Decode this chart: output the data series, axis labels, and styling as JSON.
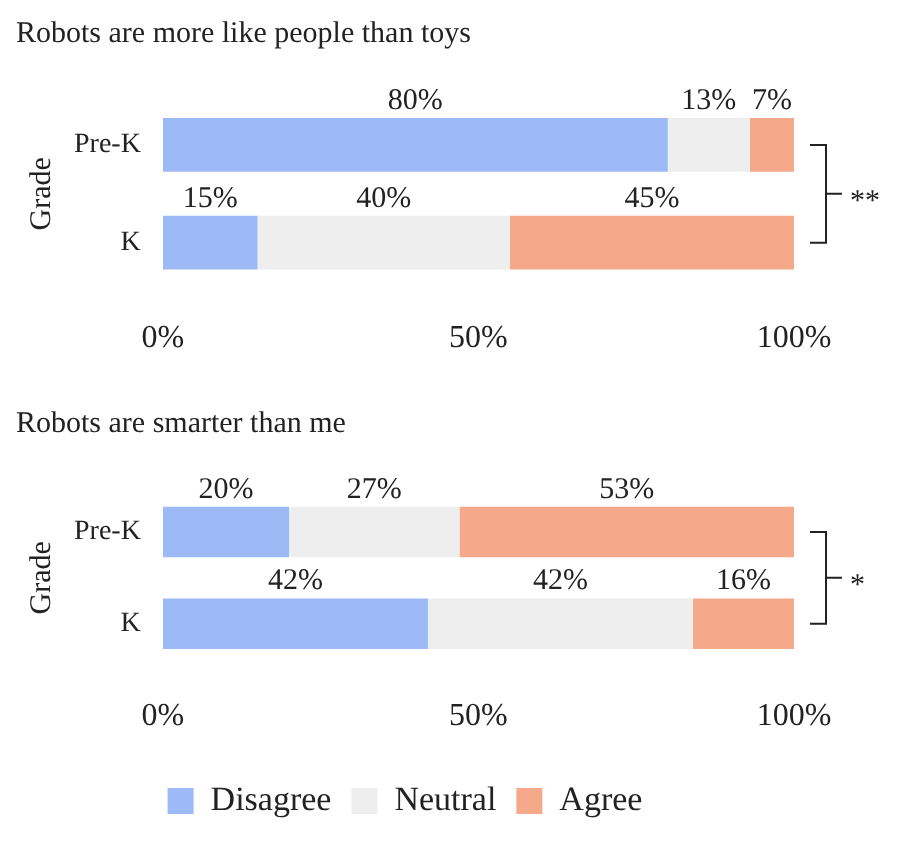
{
  "chart_data": [
    {
      "type": "bar",
      "title": "Robots are more like people than toys",
      "ylabel": "Grade",
      "orientation": "horizontal",
      "stacked": true,
      "categories": [
        "Pre-K",
        "K"
      ],
      "series": [
        {
          "color": "#9db9f6",
          "values": [
            80,
            15
          ],
          "value_labels": [
            "80%",
            "15%"
          ]
        },
        {
          "color": "#eeeeee",
          "values": [
            13,
            40
          ],
          "value_labels": [
            "13%",
            "40%"
          ]
        },
        {
          "color": "#f6a88a",
          "values": [
            7,
            45
          ],
          "value_labels": [
            "7%",
            "45%"
          ]
        }
      ],
      "xlim": [
        0,
        100
      ],
      "xticks": [
        {
          "value": 0,
          "label": "0%"
        },
        {
          "value": 50,
          "label": "50%"
        },
        {
          "value": 100,
          "label": "100%"
        }
      ],
      "grid": false,
      "legend": false,
      "annotations": [
        "**"
      ]
    },
    {
      "type": "bar",
      "title": "Robots are smarter than me",
      "ylabel": "Grade",
      "orientation": "horizontal",
      "stacked": true,
      "categories": [
        "Pre-K",
        "K"
      ],
      "series": [
        {
          "name": "Disagree",
          "color": "#9db9f6",
          "values": [
            20,
            42
          ],
          "value_labels": [
            "20%",
            "42%"
          ]
        },
        {
          "name": "Neutral",
          "color": "#eeeeee",
          "values": [
            27,
            42
          ],
          "value_labels": [
            "27%",
            "42%"
          ]
        },
        {
          "name": "Agree",
          "color": "#f6a88a",
          "values": [
            53,
            16
          ],
          "value_labels": [
            "53%",
            "16%"
          ]
        }
      ],
      "xlim": [
        0,
        100
      ],
      "xticks": [
        {
          "value": 0,
          "label": "0%"
        },
        {
          "value": 50,
          "label": "50%"
        },
        {
          "value": 100,
          "label": "100%"
        }
      ],
      "grid": false,
      "legend": "bottom",
      "annotations": [
        "*"
      ]
    }
  ]
}
